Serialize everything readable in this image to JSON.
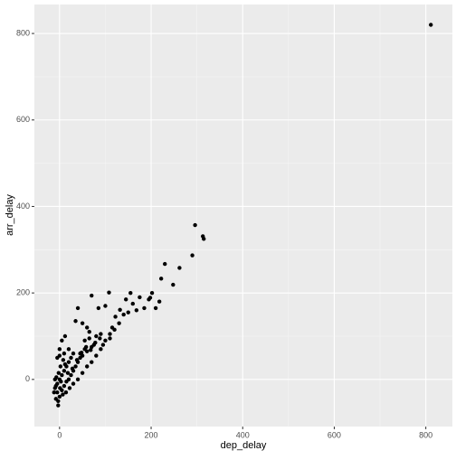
{
  "chart_data": {
    "type": "scatter",
    "x_label": "dep_delay",
    "y_label": "arr_delay",
    "xlim": [
      -55,
      858
    ],
    "ylim": [
      -109,
      867
    ],
    "xticks": [
      0,
      200,
      400,
      600,
      800
    ],
    "yticks": [
      0,
      200,
      400,
      600,
      800
    ],
    "minor_xticks": [
      100,
      300,
      500,
      700
    ],
    "minor_yticks": [
      100,
      300,
      500,
      700
    ],
    "grid": true,
    "color": "#000000",
    "x": [
      811,
      296,
      313,
      315,
      290,
      262,
      230,
      222,
      248,
      218,
      202,
      198,
      195,
      155,
      108,
      70,
      168,
      210,
      145,
      132,
      140,
      122,
      100,
      85,
      40,
      35,
      50,
      60,
      65,
      80,
      90,
      115,
      120,
      130,
      110,
      100,
      95,
      75,
      70,
      55,
      45,
      30,
      25,
      20,
      15,
      10,
      5,
      0,
      -5,
      -10,
      -5,
      -8,
      -3,
      0,
      5,
      10,
      15,
      20,
      25,
      30,
      35,
      40,
      45,
      50,
      60,
      0,
      5,
      10,
      -5,
      2,
      8,
      12,
      -2,
      -7,
      3,
      18,
      28,
      38,
      48,
      58,
      68,
      78,
      88,
      55,
      65,
      -10,
      -8,
      -3,
      1,
      7,
      14,
      22,
      30,
      40,
      50,
      60,
      70,
      80,
      90,
      110,
      150,
      160,
      175,
      185,
      -12,
      0,
      20,
      12
    ],
    "y": [
      820,
      357,
      331,
      325,
      287,
      258,
      267,
      233,
      219,
      180,
      200,
      189,
      185,
      200,
      201,
      194,
      160,
      165,
      185,
      161,
      150,
      145,
      170,
      165,
      165,
      135,
      130,
      120,
      110,
      100,
      105,
      120,
      115,
      130,
      105,
      90,
      80,
      80,
      75,
      70,
      60,
      60,
      50,
      40,
      30,
      20,
      10,
      0,
      -10,
      -20,
      -30,
      -45,
      -60,
      -40,
      -25,
      -15,
      -5,
      0,
      10,
      20,
      30,
      40,
      50,
      55,
      65,
      70,
      90,
      60,
      50,
      30,
      45,
      35,
      15,
      5,
      -5,
      15,
      25,
      45,
      62,
      75,
      68,
      85,
      95,
      90,
      95,
      0,
      -15,
      -50,
      -20,
      -35,
      -30,
      -20,
      -10,
      0,
      15,
      30,
      40,
      55,
      70,
      95,
      155,
      175,
      190,
      165,
      -30,
      55,
      70,
      100
    ]
  }
}
